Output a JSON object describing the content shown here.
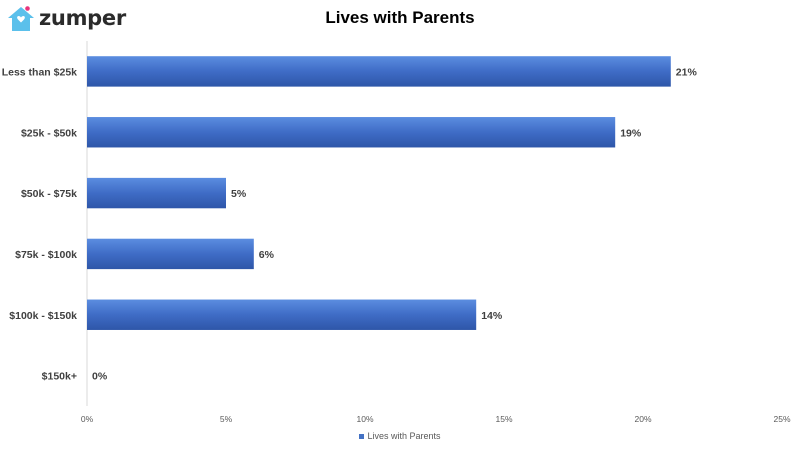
{
  "logo": {
    "text": "zumper",
    "icon": "house-heart-icon",
    "colors": {
      "house": "#5bc0eb",
      "heart": "#e8347c"
    }
  },
  "chart_data": {
    "type": "bar",
    "orientation": "horizontal",
    "title": "Lives with Parents",
    "categories": [
      "Less than $25k",
      "$25k - $50k",
      "$50k - $75k",
      "$75k - $100k",
      "$100k - $150k",
      "$150k+"
    ],
    "series": [
      {
        "name": "Lives with Parents",
        "values": [
          21,
          19,
          5,
          6,
          14,
          0
        ],
        "color": "#4472c4"
      }
    ],
    "value_labels": [
      "21%",
      "19%",
      "5%",
      "6%",
      "14%",
      "0%"
    ],
    "xlim": [
      0,
      25
    ],
    "xticks": [
      0,
      5,
      10,
      15,
      20,
      25
    ],
    "xtick_labels": [
      "0%",
      "5%",
      "10%",
      "15%",
      "20%",
      "25%"
    ],
    "grid": false,
    "legend_position": "bottom"
  }
}
